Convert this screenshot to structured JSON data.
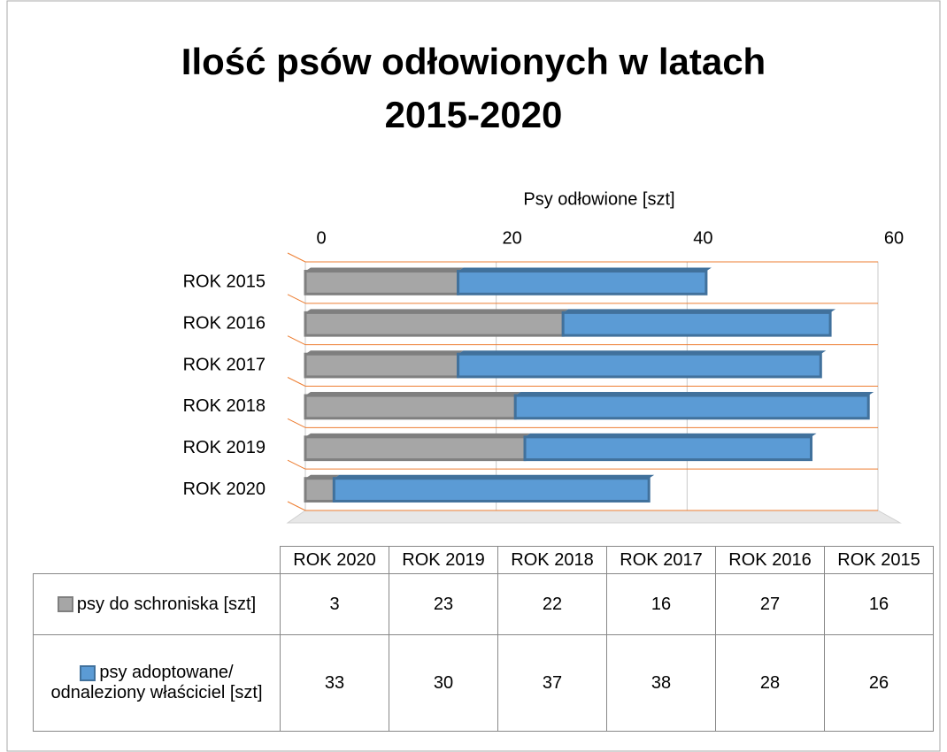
{
  "chart_data": {
    "type": "bar",
    "orientation": "horizontal",
    "stacked": true,
    "title": "Ilość psów odłowionych w latach 2015-2020",
    "x_label": "Psy odłowione [szt]",
    "categories": [
      "ROK 2020",
      "ROK 2019",
      "ROK 2018",
      "ROK 2017",
      "ROK 2016",
      "ROK 2015"
    ],
    "series": [
      {
        "name": "psy do schroniska [szt]",
        "color": "#a6a6a6",
        "values": [
          3,
          23,
          22,
          16,
          27,
          16
        ]
      },
      {
        "name": "psy adoptowane/ odnaleziony właściciel [szt]",
        "color": "#5b9bd5",
        "values": [
          33,
          30,
          37,
          38,
          28,
          26
        ]
      }
    ],
    "xlim": [
      0,
      60
    ],
    "xticks": [
      0,
      20,
      40,
      60
    ],
    "grid": true
  }
}
